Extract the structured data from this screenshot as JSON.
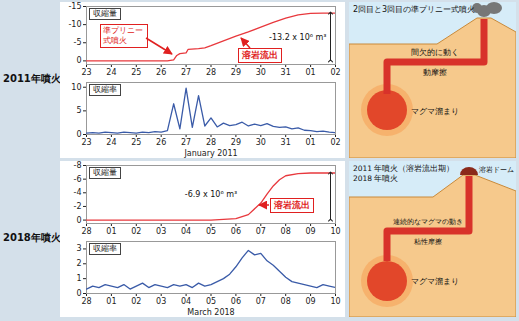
{
  "row_labels": [
    "2011年噴火",
    "2018年噴火"
  ],
  "chart_data": [
    {
      "type": "line",
      "title": "収縮量",
      "color": "#e8383d",
      "x": [
        "2011-01-23T00:00",
        "2011-01-24T00:00",
        "2011-01-25T00:00",
        "2011-01-26T06:00",
        "2011-01-26T12:00",
        "2011-01-26T15:00",
        "2011-01-26T18:00",
        "2011-01-27T00:00",
        "2011-01-27T02:00",
        "2011-01-27T12:00",
        "2011-01-27T18:00",
        "2011-01-28T00:00",
        "2011-01-28T12:00",
        "2011-01-29T00:00",
        "2011-01-29T12:00",
        "2011-01-30T00:00",
        "2011-01-30T12:00",
        "2011-01-31T00:00",
        "2011-01-31T12:00",
        "2011-02-01T00:00",
        "2011-02-01T12:00",
        "2011-02-02T00:00"
      ],
      "values": [
        0,
        0,
        0,
        0,
        -0.3,
        -1.5,
        -2.0,
        -2.2,
        -3.2,
        -3.4,
        -3.6,
        -4.2,
        -5.5,
        -6.8,
        -8.0,
        -9.3,
        -10.6,
        -11.8,
        -12.7,
        -13.1,
        -13.2,
        -13.2
      ],
      "xlim": [
        "2011-01-23T00:00",
        "2011-02-02T00:00"
      ],
      "xticks": [
        {
          "value": "2011-01-23T00:00",
          "label": "23"
        },
        {
          "value": "2011-01-24T00:00",
          "label": "24"
        },
        {
          "value": "2011-01-25T00:00",
          "label": "25"
        },
        {
          "value": "2011-01-26T00:00",
          "label": "26"
        },
        {
          "value": "2011-01-27T00:00",
          "label": "27"
        },
        {
          "value": "2011-01-28T00:00",
          "label": "28"
        },
        {
          "value": "2011-01-29T00:00",
          "label": "29"
        },
        {
          "value": "2011-01-30T00:00",
          "label": "30"
        },
        {
          "value": "2011-01-31T00:00",
          "label": "31"
        },
        {
          "value": "2011-02-01T00:00",
          "label": "01"
        },
        {
          "value": "2011-02-02T00:00",
          "label": "02"
        }
      ],
      "ylim": [
        1,
        -15
      ],
      "yticks": [
        0,
        -5,
        -10,
        -15
      ],
      "annotations": [
        "準プリニー式噴火",
        "溶岩流出"
      ],
      "change_label": "-13.2 x 10⁶ m³"
    },
    {
      "type": "line",
      "title": "収縮率",
      "color": "#3a5ba8",
      "xlabel": "January 2011",
      "x": [
        "2011-01-23T00:00",
        "2011-01-23T06:00",
        "2011-01-23T12:00",
        "2011-01-23T18:00",
        "2011-01-24T00:00",
        "2011-01-24T06:00",
        "2011-01-24T12:00",
        "2011-01-24T18:00",
        "2011-01-25T00:00",
        "2011-01-25T06:00",
        "2011-01-25T12:00",
        "2011-01-25T18:00",
        "2011-01-26T00:00",
        "2011-01-26T06:00",
        "2011-01-26T12:00",
        "2011-01-26T18:00",
        "2011-01-27T00:00",
        "2011-01-27T06:00",
        "2011-01-27T12:00",
        "2011-01-27T18:00",
        "2011-01-28T00:00",
        "2011-01-28T06:00",
        "2011-01-28T12:00",
        "2011-01-28T18:00",
        "2011-01-29T00:00",
        "2011-01-29T06:00",
        "2011-01-29T12:00",
        "2011-01-29T18:00",
        "2011-01-30T00:00",
        "2011-01-30T06:00",
        "2011-01-30T12:00",
        "2011-01-30T18:00",
        "2011-01-31T00:00",
        "2011-01-31T06:00",
        "2011-01-31T12:00",
        "2011-01-31T18:00",
        "2011-02-01T00:00",
        "2011-02-01T06:00",
        "2011-02-01T12:00",
        "2011-02-01T18:00",
        "2011-02-02T00:00"
      ],
      "values": [
        0.3,
        0.4,
        0.3,
        0.5,
        0.4,
        0.3,
        0.5,
        0.4,
        0.3,
        0.5,
        0.4,
        0.6,
        0.5,
        0.8,
        6.5,
        1.2,
        9.8,
        1.5,
        8.2,
        1.8,
        3.5,
        1.6,
        2.4,
        1.9,
        2.1,
        2.6,
        1.8,
        2.2,
        1.9,
        2.3,
        1.7,
        1.5,
        1.6,
        1.2,
        1.4,
        0.9,
        0.8,
        0.6,
        0.7,
        0.5,
        0.4
      ],
      "xlim": [
        "2011-01-23T00:00",
        "2011-02-02T00:00"
      ],
      "xticks": [
        {
          "value": "2011-01-23T00:00",
          "label": "23"
        },
        {
          "value": "2011-01-24T00:00",
          "label": "24"
        },
        {
          "value": "2011-01-25T00:00",
          "label": "25"
        },
        {
          "value": "2011-01-26T00:00",
          "label": "26"
        },
        {
          "value": "2011-01-27T00:00",
          "label": "27"
        },
        {
          "value": "2011-01-28T00:00",
          "label": "28"
        },
        {
          "value": "2011-01-29T00:00",
          "label": "29"
        },
        {
          "value": "2011-01-30T00:00",
          "label": "30"
        },
        {
          "value": "2011-01-31T00:00",
          "label": "31"
        },
        {
          "value": "2011-02-01T00:00",
          "label": "01"
        },
        {
          "value": "2011-02-02T00:00",
          "label": "02"
        }
      ],
      "ylim": [
        0,
        11
      ],
      "yticks": [
        0,
        5,
        10
      ]
    },
    {
      "type": "line",
      "title": "収縮量",
      "color": "#e8383d",
      "x": [
        "2018-02-28T00:00",
        "2018-03-01T00:00",
        "2018-03-02T00:00",
        "2018-03-03T00:00",
        "2018-03-04T00:00",
        "2018-03-05T00:00",
        "2018-03-06T00:00",
        "2018-03-06T12:00",
        "2018-03-07T00:00",
        "2018-03-07T06:00",
        "2018-03-07T12:00",
        "2018-03-07T18:00",
        "2018-03-08T00:00",
        "2018-03-08T12:00",
        "2018-03-09T00:00",
        "2018-03-10T00:00"
      ],
      "values": [
        0,
        0,
        0,
        0,
        0,
        0,
        -0.2,
        -0.8,
        -2.5,
        -3.8,
        -5.0,
        -5.9,
        -6.5,
        -6.8,
        -6.9,
        -6.9
      ],
      "xlim": [
        "2018-02-28T00:00",
        "2018-03-10T00:00"
      ],
      "xticks": [
        {
          "value": "2018-02-28T00:00",
          "label": "28"
        },
        {
          "value": "2018-03-01T00:00",
          "label": "01"
        },
        {
          "value": "2018-03-02T00:00",
          "label": "02"
        },
        {
          "value": "2018-03-03T00:00",
          "label": "03"
        },
        {
          "value": "2018-03-04T00:00",
          "label": "04"
        },
        {
          "value": "2018-03-05T00:00",
          "label": "05"
        },
        {
          "value": "2018-03-06T00:00",
          "label": "06"
        },
        {
          "value": "2018-03-07T00:00",
          "label": "07"
        },
        {
          "value": "2018-03-08T00:00",
          "label": "08"
        },
        {
          "value": "2018-03-09T00:00",
          "label": "09"
        },
        {
          "value": "2018-03-10T00:00",
          "label": "10"
        }
      ],
      "ylim": [
        0.5,
        -8
      ],
      "yticks": [
        0,
        -2,
        -4,
        -6,
        -8
      ],
      "annotations": [
        "溶岩流出"
      ],
      "change_label": "-6.9 x 10⁶ m³"
    },
    {
      "type": "line",
      "title": "収縮率",
      "color": "#3a5ba8",
      "xlabel": "March 2018",
      "x": [
        "2018-02-28T00:00",
        "2018-02-28T06:00",
        "2018-02-28T12:00",
        "2018-02-28T18:00",
        "2018-03-01T00:00",
        "2018-03-01T06:00",
        "2018-03-01T12:00",
        "2018-03-01T18:00",
        "2018-03-02T00:00",
        "2018-03-02T06:00",
        "2018-03-02T12:00",
        "2018-03-02T18:00",
        "2018-03-03T00:00",
        "2018-03-03T06:00",
        "2018-03-03T12:00",
        "2018-03-03T18:00",
        "2018-03-04T00:00",
        "2018-03-04T06:00",
        "2018-03-04T12:00",
        "2018-03-04T18:00",
        "2018-03-05T00:00",
        "2018-03-05T06:00",
        "2018-03-05T12:00",
        "2018-03-05T18:00",
        "2018-03-06T00:00",
        "2018-03-06T06:00",
        "2018-03-06T12:00",
        "2018-03-06T18:00",
        "2018-03-07T00:00",
        "2018-03-07T06:00",
        "2018-03-07T12:00",
        "2018-03-07T18:00",
        "2018-03-08T00:00",
        "2018-03-08T06:00",
        "2018-03-08T12:00",
        "2018-03-08T18:00",
        "2018-03-09T00:00",
        "2018-03-09T06:00",
        "2018-03-09T12:00",
        "2018-03-09T18:00",
        "2018-03-10T00:00"
      ],
      "values": [
        0.3,
        0.5,
        0.4,
        0.6,
        0.5,
        0.4,
        0.6,
        0.3,
        0.5,
        0.7,
        0.4,
        0.6,
        0.5,
        0.4,
        0.6,
        0.5,
        0.6,
        0.4,
        0.7,
        0.5,
        0.6,
        0.8,
        1.0,
        1.3,
        1.8,
        2.4,
        2.9,
        2.6,
        2.7,
        2.2,
        1.9,
        1.5,
        1.1,
        0.8,
        0.7,
        0.6,
        0.5,
        0.4,
        0.6,
        0.5,
        0.4
      ],
      "xlim": [
        "2018-02-28T00:00",
        "2018-03-10T00:00"
      ],
      "xticks": [
        {
          "value": "2018-02-28T00:00",
          "label": "28"
        },
        {
          "value": "2018-03-01T00:00",
          "label": "01"
        },
        {
          "value": "2018-03-02T00:00",
          "label": "02"
        },
        {
          "value": "2018-03-03T00:00",
          "label": "03"
        },
        {
          "value": "2018-03-04T00:00",
          "label": "04"
        },
        {
          "value": "2018-03-05T00:00",
          "label": "05"
        },
        {
          "value": "2018-03-06T00:00",
          "label": "06"
        },
        {
          "value": "2018-03-07T00:00",
          "label": "07"
        },
        {
          "value": "2018-03-08T00:00",
          "label": "08"
        },
        {
          "value": "2018-03-09T00:00",
          "label": "09"
        },
        {
          "value": "2018-03-10T00:00",
          "label": "10"
        }
      ],
      "ylim": [
        0,
        3.5
      ],
      "yticks": [
        0,
        1,
        2,
        3
      ]
    }
  ],
  "diagrams": [
    {
      "title": [
        "2回目と3回目の準プリニー式噴火"
      ],
      "motion": "間欠的に動く",
      "friction": "動摩擦",
      "chamber": "マグマ溜まり"
    },
    {
      "title": [
        "2011 年噴火（溶岩流出期）",
        "2018 年噴火"
      ],
      "dome": "溶岩ドーム",
      "motion": "連続的なマグマの動き",
      "friction": "粘性摩擦",
      "chamber": "マグマ溜まり"
    }
  ]
}
